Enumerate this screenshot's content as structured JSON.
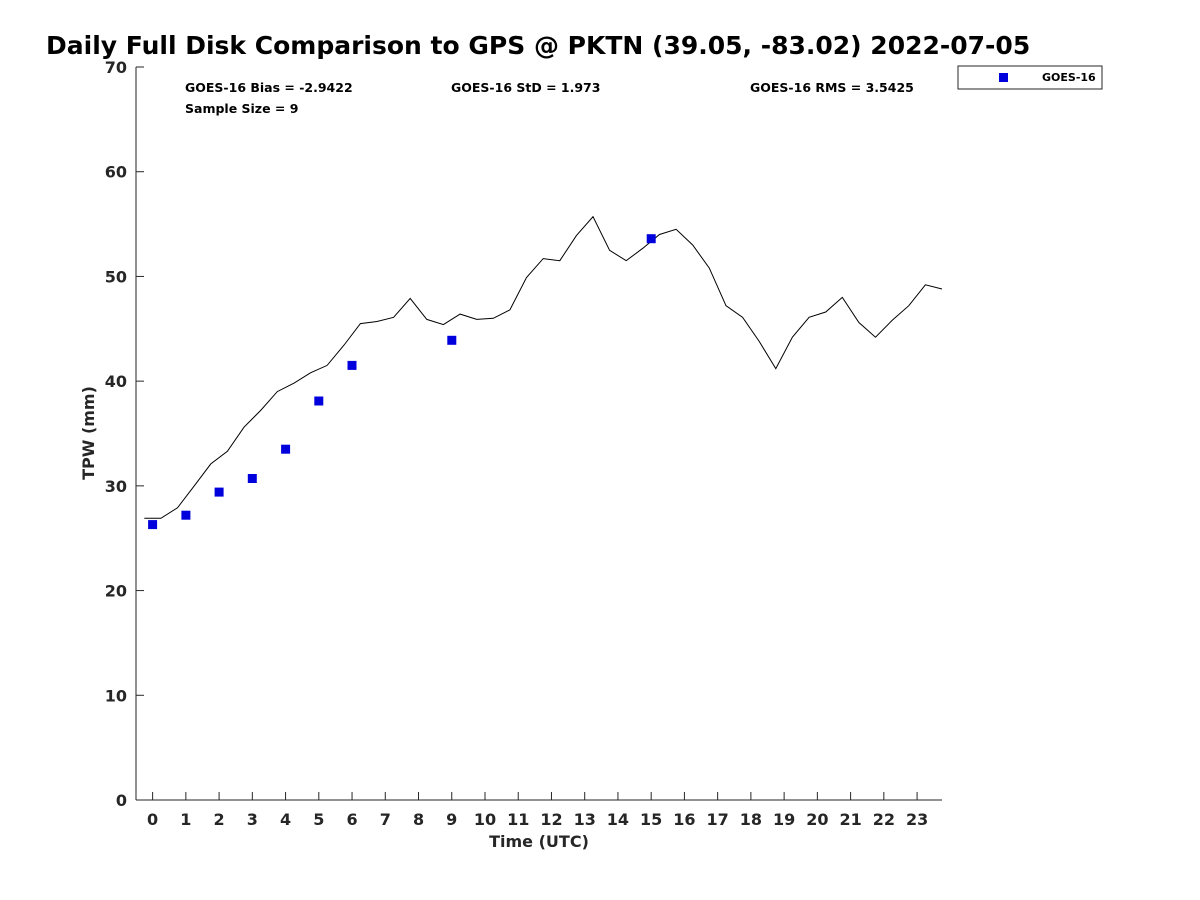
{
  "chart_data": {
    "type": "scatter",
    "title": "Daily Full Disk Comparison to GPS @ PKTN (39.05, -83.02) 2022-07-05",
    "xlabel": "Time (UTC)",
    "ylabel": "TPW (mm)",
    "xlim": [
      -0.5,
      23.75
    ],
    "ylim": [
      0,
      70
    ],
    "xticks": [
      0,
      1,
      2,
      3,
      4,
      5,
      6,
      7,
      8,
      9,
      10,
      11,
      12,
      13,
      14,
      15,
      16,
      17,
      18,
      19,
      20,
      21,
      22,
      23
    ],
    "yticks": [
      0,
      10,
      20,
      30,
      40,
      50,
      60,
      70
    ],
    "grid": false,
    "legend": {
      "position": "top-right-outside",
      "entries": [
        "GOES-16"
      ]
    },
    "stats": {
      "bias": "GOES-16 Bias = -2.9422",
      "std": "GOES-16 StD = 1.973",
      "rms": "GOES-16 RMS = 3.5425",
      "sample": "Sample Size = 9"
    },
    "series": [
      {
        "name": "GOES-16",
        "kind": "scatter",
        "color": "#0000dd",
        "x": [
          0,
          1,
          2,
          3,
          4,
          5,
          6,
          9,
          15
        ],
        "y": [
          26.3,
          27.2,
          29.4,
          30.7,
          33.5,
          38.1,
          41.5,
          43.9,
          53.6
        ]
      },
      {
        "kind": "line",
        "color": "#000000",
        "x": [
          -0.25,
          0.25,
          0.75,
          1.25,
          1.75,
          2.25,
          2.75,
          3.25,
          3.75,
          4.25,
          4.75,
          5.25,
          5.75,
          6.25,
          6.75,
          7.25,
          7.75,
          8.25,
          8.75,
          9.25,
          9.75,
          10.25,
          10.75,
          11.25,
          11.75,
          12.25,
          12.75,
          13.25,
          13.75,
          14.25,
          14.75,
          15.25,
          15.75,
          16.25,
          16.75,
          17.25,
          17.75,
          18.25,
          18.75,
          19.25,
          19.75,
          20.25,
          20.75,
          21.25,
          21.75,
          22.25,
          22.75,
          23.25,
          23.75
        ],
        "y": [
          26.9,
          26.9,
          27.9,
          30.0,
          32.1,
          33.3,
          35.6,
          37.2,
          39.0,
          39.8,
          40.8,
          41.5,
          43.4,
          45.5,
          45.7,
          46.1,
          47.9,
          45.9,
          45.4,
          46.4,
          45.9,
          46.0,
          46.8,
          49.9,
          51.7,
          51.5,
          53.9,
          55.7,
          52.5,
          51.5,
          52.7,
          54.0,
          54.5,
          53.0,
          50.8,
          47.2,
          46.1,
          43.8,
          41.2,
          44.2,
          46.1,
          46.6,
          48.0,
          45.6,
          44.2,
          45.8,
          47.2,
          49.2,
          48.8
        ]
      }
    ]
  }
}
